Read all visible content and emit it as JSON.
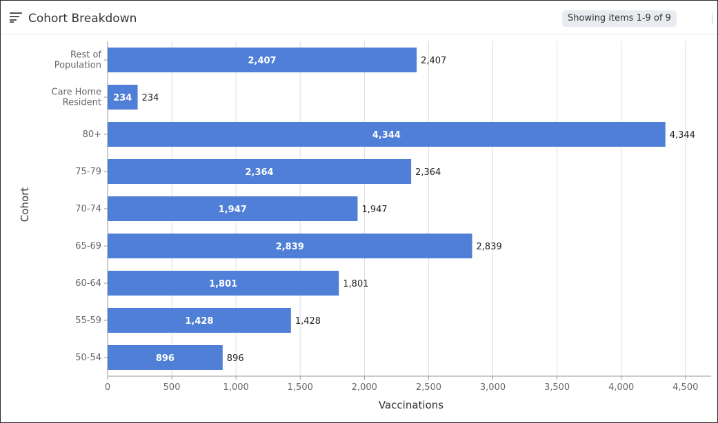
{
  "header": {
    "title": "Cohort Breakdown",
    "status": "Showing items 1-9 of 9",
    "menu_icon": "lines-menu-icon"
  },
  "colors": {
    "bar": "#4f7fd6",
    "grid": "#d8dde3",
    "axis": "#999999"
  },
  "chart_data": {
    "type": "bar",
    "orientation": "horizontal",
    "xlabel": "Vaccinations",
    "ylabel": "Cohort",
    "xlim": [
      0,
      4700
    ],
    "x_ticks": [
      0,
      500,
      1000,
      1500,
      2000,
      2500,
      3000,
      3500,
      4000,
      4500
    ],
    "x_tick_labels": [
      "0",
      "500",
      "1,000",
      "1,500",
      "2,000",
      "2,500",
      "3,000",
      "3,500",
      "4,000",
      "4,500"
    ],
    "grid": true,
    "legend": "none",
    "categories": [
      [
        "Rest of",
        "Population"
      ],
      [
        "Care Home",
        "Resident"
      ],
      [
        "80+"
      ],
      [
        "75-79"
      ],
      [
        "70-74"
      ],
      [
        "65-69"
      ],
      [
        "60-64"
      ],
      [
        "55-59"
      ],
      [
        "50-54"
      ]
    ],
    "values": [
      2407,
      234,
      4344,
      2364,
      1947,
      2839,
      1801,
      1428,
      896
    ],
    "value_labels": [
      "2,407",
      "234",
      "4,344",
      "2,364",
      "1,947",
      "2,839",
      "1,801",
      "1,428",
      "896"
    ]
  }
}
